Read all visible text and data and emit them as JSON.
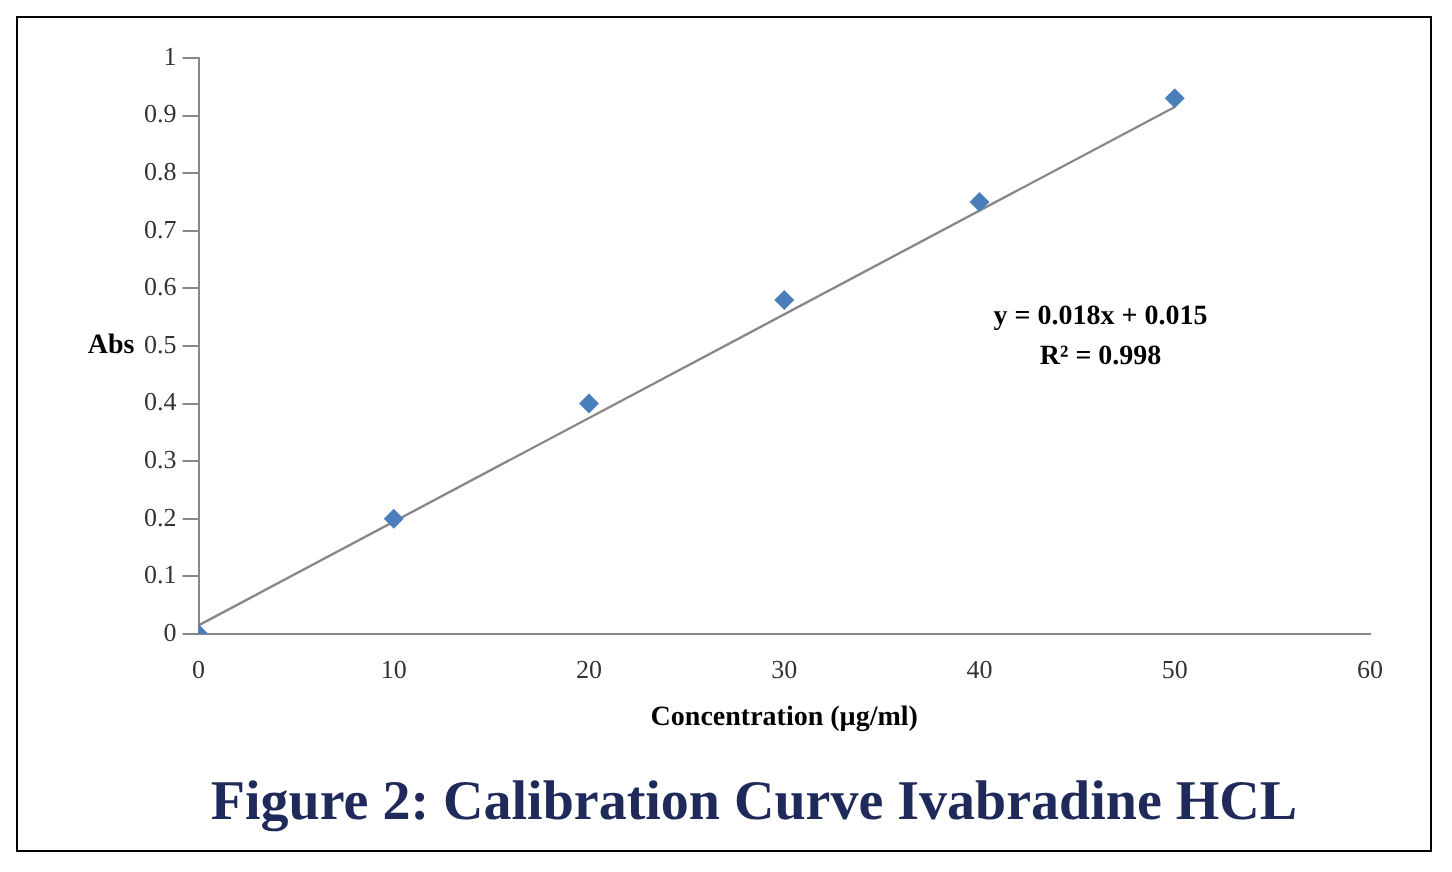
{
  "chart_data": {
    "type": "scatter",
    "title": "Figure 2: Calibration Curve Ivabradine HCL",
    "xlabel": "Concentration (µg/ml)",
    "ylabel": "Abs",
    "grid": false,
    "legend": false,
    "series": [
      {
        "color": "#4a7ebb",
        "marker": "diamond",
        "x": [
          0,
          10,
          20,
          30,
          40,
          50
        ],
        "values": [
          0,
          0.2,
          0.4,
          0.58,
          0.75,
          0.93
        ]
      },
      {
        "type": "line",
        "marker": "none",
        "color": "#868686",
        "x": [
          0,
          50
        ],
        "values": [
          0.015,
          0.915
        ]
      }
    ],
    "xlim": [
      0,
      60
    ],
    "xticks": [
      0,
      10,
      20,
      30,
      40,
      50,
      60
    ],
    "ylim": [
      0,
      1
    ],
    "yticks": [
      0,
      0.1,
      0.2,
      0.3,
      0.4,
      0.5,
      0.6,
      0.7,
      0.8,
      0.9,
      1
    ],
    "annotations": [
      "y = 0.018x + 0.015",
      "R² = 0.998"
    ]
  }
}
